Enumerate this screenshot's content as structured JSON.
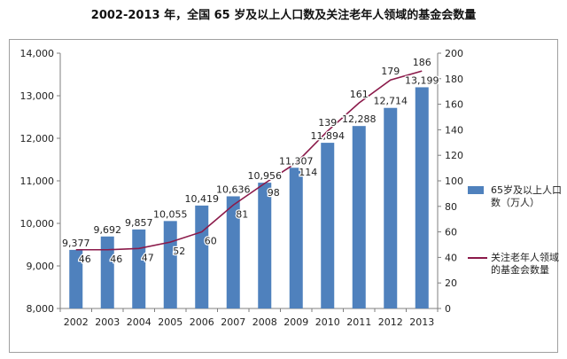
{
  "title": "2002-2013 年，全国 65 岁及以上人口数及关注老年人领域的基金会数量",
  "chart_data": {
    "type": "bar",
    "categories": [
      "2002",
      "2003",
      "2004",
      "2005",
      "2006",
      "2007",
      "2008",
      "2009",
      "2010",
      "2011",
      "2012",
      "2013"
    ],
    "series": [
      {
        "name": "65岁及以上人口数（万人）",
        "type": "bar",
        "axis": "left",
        "values": [
          9377,
          9692,
          9857,
          10055,
          10419,
          10636,
          10956,
          11307,
          11894,
          12288,
          12714,
          13199
        ],
        "labels": [
          "9,377",
          "9,692",
          "9,857",
          "10,055",
          "10,419",
          "10,636",
          "10,956",
          "11,307",
          "11,894",
          "12,288",
          "12,714",
          "13,199"
        ]
      },
      {
        "name": "关注老年人领域的基金会数量",
        "type": "line",
        "axis": "right",
        "values": [
          46,
          46,
          47,
          52,
          60,
          81,
          98,
          114,
          139,
          161,
          179,
          186
        ],
        "labels": [
          "46",
          "46",
          "47",
          "52",
          "60",
          "81",
          "98",
          "114",
          "139",
          "161",
          "179",
          "186"
        ]
      }
    ],
    "left_axis": {
      "ylim": [
        8000,
        14000
      ],
      "ticks": [
        "8,000",
        "9,000",
        "10,000",
        "11,000",
        "12,000",
        "13,000",
        "14,000"
      ]
    },
    "right_axis": {
      "ylim": [
        0,
        200
      ],
      "ticks": [
        "0",
        "20",
        "40",
        "60",
        "80",
        "100",
        "120",
        "140",
        "160",
        "180",
        "200"
      ]
    },
    "legend_position": "right",
    "grid": false,
    "colors": {
      "bar": "#4f81bd",
      "line": "#8b1a4a",
      "axis": "#7f7f7f"
    }
  },
  "legend": {
    "bar_label": "65岁及以上人口数（万人）",
    "line_label": "关注老年人领域的基金会数量"
  }
}
